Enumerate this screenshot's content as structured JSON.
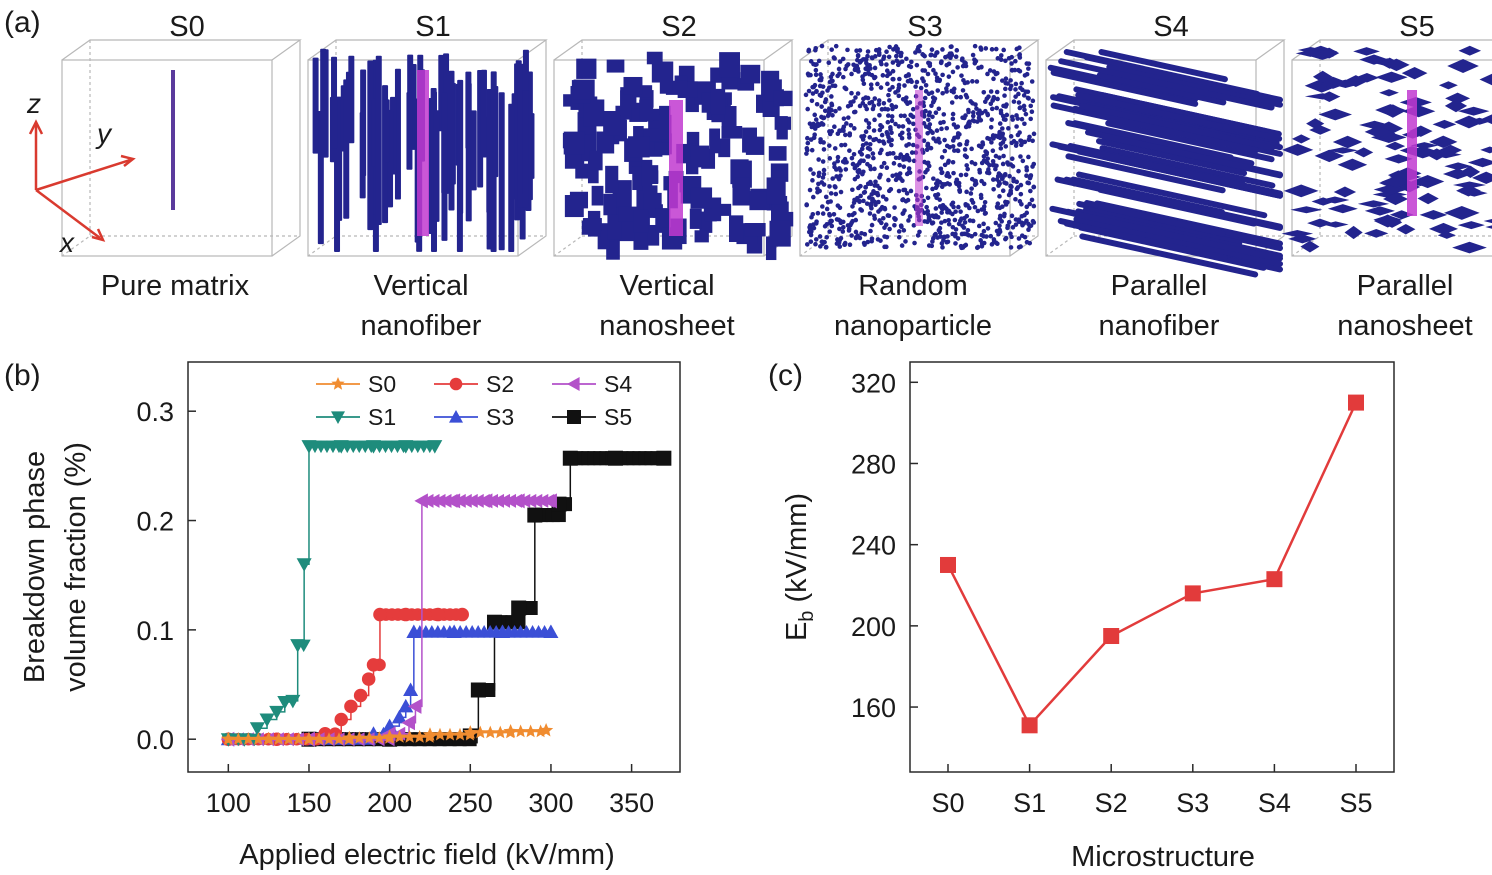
{
  "panel_labels": {
    "a": "(a)",
    "b": "(b)",
    "c": "(c)"
  },
  "colors": {
    "blue": "#23248e",
    "pink": "#c13ad0",
    "S0": "#f08c30",
    "S1": "#1e8c7c",
    "S2": "#e53c3c",
    "S3": "#3b4fd6",
    "S4": "#b351c9",
    "S5": "#111111",
    "red_c": "#e23b3b",
    "axis_red": "#d93a2f"
  },
  "structures": [
    {
      "id": "S0",
      "title": "S0",
      "label1": "Pure matrix",
      "label2": "",
      "kind": "pure"
    },
    {
      "id": "S1",
      "title": "S1",
      "label1": "Vertical",
      "label2": "nanofiber",
      "kind": "vfiber"
    },
    {
      "id": "S2",
      "title": "S2",
      "label1": "Vertical",
      "label2": "nanosheet",
      "kind": "vsheet"
    },
    {
      "id": "S3",
      "title": "S3",
      "label1": "Random",
      "label2": "nanoparticle",
      "kind": "particle"
    },
    {
      "id": "S4",
      "title": "S4",
      "label1": "Parallel",
      "label2": "nanofiber",
      "kind": "pfiber"
    },
    {
      "id": "S5",
      "title": "S5",
      "label1": "Parallel",
      "label2": "nanosheet",
      "kind": "psheet"
    }
  ],
  "axes3d": {
    "x": "x",
    "y": "y",
    "z": "z"
  },
  "chart_data": [
    {
      "panel": "b",
      "type": "line",
      "xlabel": "Applied electric field (kV/mm)",
      "ylabel_line1": "Breakdown phase",
      "ylabel_line2": "volume fraction (%)",
      "xlim": [
        75,
        380
      ],
      "ylim": [
        -0.03,
        0.345
      ],
      "xticks": [
        100,
        150,
        200,
        250,
        300,
        350
      ],
      "yticks": [
        0.0,
        0.1,
        0.2,
        0.3
      ],
      "ytick_labels": [
        "0.0",
        "0.1",
        "0.2",
        "0.3"
      ],
      "legend": [
        {
          "name": "S0",
          "marker": "star"
        },
        {
          "name": "S2",
          "marker": "circle"
        },
        {
          "name": "S4",
          "marker": "triangle-left"
        },
        {
          "name": "S1",
          "marker": "triangle-down"
        },
        {
          "name": "S3",
          "marker": "triangle-up"
        },
        {
          "name": "S5",
          "marker": "square"
        }
      ],
      "series": [
        {
          "name": "S0",
          "marker": "star",
          "x": [
            100,
            125,
            150,
            175,
            200,
            225,
            250,
            275,
            297
          ],
          "y": [
            0.0,
            0.0,
            0.0,
            0.001,
            0.002,
            0.004,
            0.006,
            0.007,
            0.008
          ]
        },
        {
          "name": "S1",
          "marker": "triangle-down",
          "x": [
            100,
            110,
            118,
            124,
            130,
            135,
            140,
            143,
            147,
            150,
            170,
            190,
            210,
            228
          ],
          "y": [
            0.0,
            0.0,
            0.01,
            0.018,
            0.025,
            0.034,
            0.035,
            0.086,
            0.16,
            0.268,
            0.268,
            0.268,
            0.268,
            0.268
          ]
        },
        {
          "name": "S2",
          "marker": "circle",
          "x": [
            100,
            130,
            160,
            170,
            176,
            182,
            187,
            190,
            194,
            210,
            230,
            245
          ],
          "y": [
            0.0,
            0.0,
            0.005,
            0.018,
            0.03,
            0.04,
            0.055,
            0.068,
            0.114,
            0.114,
            0.114,
            0.114
          ]
        },
        {
          "name": "S3",
          "marker": "triangle-up",
          "x": [
            100,
            150,
            190,
            200,
            206,
            210,
            213,
            215,
            240,
            270,
            300
          ],
          "y": [
            0.0,
            0.0,
            0.005,
            0.012,
            0.02,
            0.03,
            0.045,
            0.098,
            0.098,
            0.098,
            0.098
          ]
        },
        {
          "name": "S4",
          "marker": "triangle-left",
          "x": [
            100,
            150,
            200,
            212,
            216,
            220,
            240,
            260,
            280,
            300
          ],
          "y": [
            0.0,
            0.0,
            0.005,
            0.015,
            0.03,
            0.218,
            0.218,
            0.218,
            0.218,
            0.218
          ]
        },
        {
          "name": "S5",
          "marker": "square",
          "x": [
            150,
            200,
            250,
            255,
            265,
            280,
            290,
            305,
            312,
            340,
            370
          ],
          "y": [
            0.0,
            0.0,
            0.003,
            0.045,
            0.107,
            0.12,
            0.205,
            0.215,
            0.257,
            0.257,
            0.257
          ]
        }
      ]
    },
    {
      "panel": "c",
      "type": "line",
      "xlabel": "Microstructure",
      "ylabel": "E",
      "ylabel_sub": "b",
      "ylabel_unit": " (kV/mm)",
      "categories": [
        "S0",
        "S1",
        "S2",
        "S3",
        "S4",
        "S5"
      ],
      "values": [
        230,
        151,
        195,
        216,
        223,
        310
      ],
      "ylim": [
        128,
        330
      ],
      "yticks": [
        160,
        200,
        240,
        280,
        320
      ]
    }
  ]
}
